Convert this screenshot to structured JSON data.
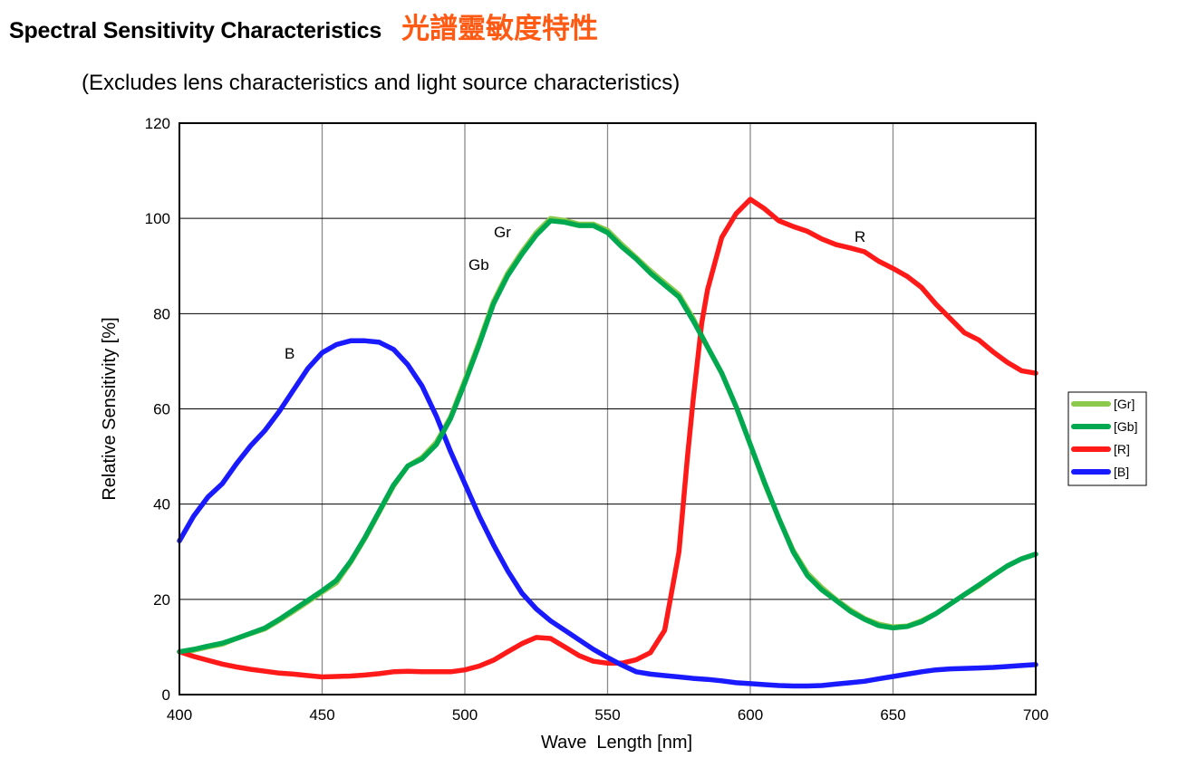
{
  "header": {
    "title_en": "Spectral Sensitivity Characteristics",
    "title_ja": "光譜靈敏度特性"
  },
  "subtitle": "(Excludes lens characteristics and light source characteristics)",
  "chart_data": {
    "type": "line",
    "xlabel": "Wave  Length [nm]",
    "ylabel": "Relative Sensitivity [%]",
    "xlim": [
      400,
      700
    ],
    "ylim": [
      0,
      120
    ],
    "xticks": [
      400,
      450,
      500,
      550,
      600,
      650,
      700
    ],
    "yticks": [
      0,
      20,
      40,
      60,
      80,
      100,
      120
    ],
    "grid": true,
    "legend_position": "right",
    "series": [
      {
        "name": "[Gr]",
        "annotation": "Gr",
        "color": "#8cc84b",
        "x": [
          400,
          405,
          410,
          415,
          420,
          425,
          430,
          435,
          440,
          445,
          450,
          455,
          460,
          465,
          470,
          475,
          480,
          485,
          490,
          495,
          500,
          505,
          510,
          515,
          520,
          525,
          530,
          535,
          540,
          545,
          550,
          555,
          560,
          565,
          570,
          575,
          580,
          585,
          590,
          595,
          600,
          605,
          610,
          615,
          620,
          625,
          630,
          635,
          640,
          645,
          650,
          655,
          660,
          665,
          670,
          675,
          680,
          685,
          690,
          695,
          700
        ],
        "y": [
          9,
          9.3,
          10,
          10.6,
          11.8,
          12.8,
          13.8,
          15.6,
          17.5,
          19.5,
          21.5,
          23.5,
          27.8,
          32.8,
          38.3,
          43.8,
          48,
          49.8,
          53,
          58.3,
          66,
          74,
          82.5,
          88.5,
          93,
          97,
          100,
          99.6,
          98.8,
          98.8,
          97.5,
          94.5,
          91.8,
          89,
          86.5,
          84,
          79,
          73,
          67.5,
          60.5,
          52.5,
          44.3,
          37,
          30.3,
          25.5,
          22.5,
          20,
          17.8,
          16,
          14.8,
          14.2,
          14.4,
          15.5,
          17,
          19,
          21,
          22.8,
          25,
          27,
          28.5,
          29.5
        ]
      },
      {
        "name": "[Gb]",
        "annotation": "Gb",
        "color": "#00a94f",
        "x": [
          400,
          405,
          410,
          415,
          420,
          425,
          430,
          435,
          440,
          445,
          450,
          455,
          460,
          465,
          470,
          475,
          480,
          485,
          490,
          495,
          500,
          505,
          510,
          515,
          520,
          525,
          530,
          535,
          540,
          545,
          550,
          555,
          560,
          565,
          570,
          575,
          580,
          585,
          590,
          595,
          600,
          605,
          610,
          615,
          620,
          625,
          630,
          635,
          640,
          645,
          650,
          655,
          660,
          665,
          670,
          675,
          680,
          685,
          690,
          695,
          700
        ],
        "y": [
          9,
          9.5,
          10.2,
          10.8,
          11.8,
          12.9,
          14,
          15.8,
          17.8,
          19.8,
          21.8,
          24,
          28,
          33,
          38.5,
          44,
          48,
          49.5,
          52.5,
          58,
          65.5,
          73.5,
          82,
          88,
          92.5,
          96.5,
          99.5,
          99.2,
          98.5,
          98.5,
          97,
          94,
          91.5,
          88.5,
          86,
          83.5,
          78.5,
          73,
          67.5,
          60.5,
          52.5,
          44.5,
          37,
          30,
          25,
          22,
          19.8,
          17.5,
          15.8,
          14.5,
          14,
          14.3,
          15.3,
          17,
          19,
          21,
          23,
          25,
          27,
          28.5,
          29.5
        ]
      },
      {
        "name": "[R]",
        "annotation": "R",
        "color": "#ff1a1a",
        "x": [
          400,
          405,
          410,
          415,
          420,
          425,
          430,
          435,
          440,
          445,
          450,
          455,
          460,
          465,
          470,
          475,
          480,
          485,
          490,
          495,
          500,
          505,
          510,
          515,
          520,
          525,
          530,
          535,
          540,
          545,
          550,
          555,
          560,
          565,
          570,
          575,
          578,
          580,
          583,
          585,
          590,
          595,
          600,
          605,
          610,
          615,
          620,
          625,
          630,
          635,
          640,
          645,
          650,
          655,
          660,
          665,
          670,
          675,
          680,
          685,
          690,
          695,
          700
        ],
        "y": [
          9,
          8,
          7.2,
          6.4,
          5.8,
          5.3,
          4.9,
          4.5,
          4.3,
          4.0,
          3.7,
          3.8,
          3.9,
          4.1,
          4.4,
          4.8,
          4.9,
          4.8,
          4.8,
          4.8,
          5.2,
          6,
          7.2,
          9,
          10.7,
          12,
          11.8,
          10,
          8.2,
          7,
          6.6,
          6.6,
          7.3,
          8.8,
          13.5,
          30,
          50,
          62,
          78,
          85,
          96,
          101,
          104,
          102,
          99.5,
          98.3,
          97.3,
          95.7,
          94.5,
          93.8,
          93,
          91,
          89.5,
          87.8,
          85.5,
          82,
          79,
          76,
          74.5,
          72,
          69.8,
          68,
          67.5
        ]
      },
      {
        "name": "[B]",
        "annotation": "B",
        "color": "#1a1aff",
        "x": [
          400,
          405,
          410,
          415,
          420,
          425,
          430,
          435,
          440,
          445,
          450,
          455,
          460,
          465,
          470,
          475,
          480,
          485,
          490,
          495,
          500,
          505,
          510,
          515,
          520,
          525,
          530,
          535,
          540,
          545,
          550,
          555,
          560,
          565,
          570,
          575,
          580,
          585,
          590,
          595,
          600,
          605,
          610,
          615,
          620,
          625,
          630,
          635,
          640,
          645,
          650,
          655,
          660,
          665,
          670,
          675,
          680,
          685,
          690,
          695,
          700
        ],
        "y": [
          32.3,
          37.5,
          41.5,
          44.3,
          48.5,
          52.3,
          55.5,
          59.5,
          64,
          68.5,
          71.8,
          73.5,
          74.3,
          74.3,
          74,
          72.5,
          69.3,
          64.8,
          58.5,
          51,
          44.3,
          37.5,
          31.5,
          26,
          21.3,
          18,
          15.5,
          13.5,
          11.5,
          9.5,
          7.8,
          6.2,
          4.8,
          4.3,
          4,
          3.7,
          3.4,
          3.2,
          2.9,
          2.5,
          2.3,
          2.1,
          1.9,
          1.8,
          1.8,
          1.9,
          2.2,
          2.5,
          2.8,
          3.3,
          3.8,
          4.3,
          4.8,
          5.2,
          5.4,
          5.5,
          5.6,
          5.7,
          5.9,
          6.1,
          6.3
        ]
      }
    ]
  }
}
